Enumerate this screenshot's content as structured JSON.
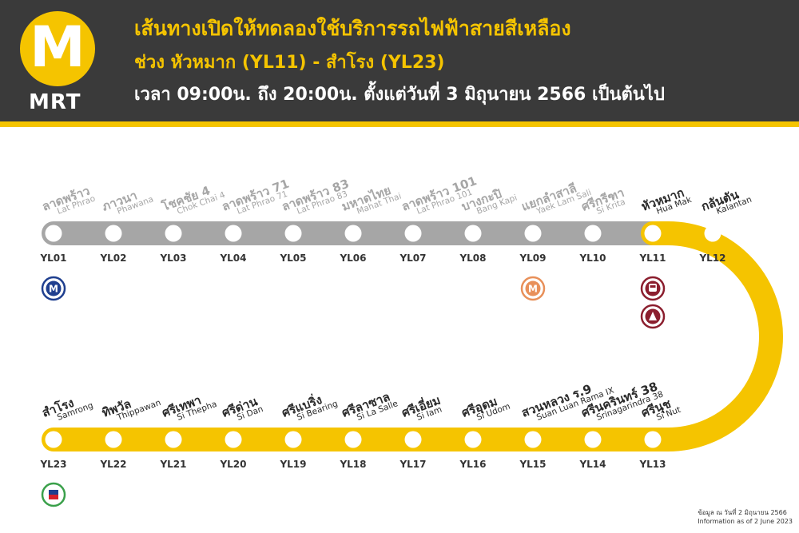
{
  "header": {
    "logo_letter": "M",
    "logo_text": "MRT",
    "title_line1": "เส้นทางเปิดให้ทดลองใช้บริการรถไฟฟ้าสายสีเหลือง",
    "title_line2": "ช่วง หัวหมาก (YL11) - สำโรง (YL23)",
    "title_line3": "เวลา 09:00น. ถึง 20:00น. ตั้งแต่วันที่ 3 มิถุนายน 2566 เป็นต้นไป"
  },
  "colors": {
    "header_bg": "#3a3a3a",
    "accent_yellow": "#f5c400",
    "inactive_gray": "#a6a6a6",
    "mrt_blue": "#1f3f8f",
    "mrt_orange": "#e8905a",
    "arl_maroon": "#8b1e2e",
    "srt_green": "#3aa04a"
  },
  "stations_top": [
    {
      "code": "YL01",
      "th": "ลาดพร้าว",
      "en": "Lat Phrao",
      "open": false,
      "interchange": [
        "mrt-blue"
      ]
    },
    {
      "code": "YL02",
      "th": "ภาวนา",
      "en": "Phawana",
      "open": false,
      "interchange": []
    },
    {
      "code": "YL03",
      "th": "โชคชัย 4",
      "en": "Chok Chai 4",
      "open": false,
      "interchange": []
    },
    {
      "code": "YL04",
      "th": "ลาดพร้าว 71",
      "en": "Lat Phrao 71",
      "open": false,
      "interchange": []
    },
    {
      "code": "YL05",
      "th": "ลาดพร้าว 83",
      "en": "Lat Phrao 83",
      "open": false,
      "interchange": []
    },
    {
      "code": "YL06",
      "th": "มหาดไทย",
      "en": "Mahat Thai",
      "open": false,
      "interchange": []
    },
    {
      "code": "YL07",
      "th": "ลาดพร้าว 101",
      "en": "Lat Phrao 101",
      "open": false,
      "interchange": []
    },
    {
      "code": "YL08",
      "th": "บางกะปิ",
      "en": "Bang Kapi",
      "open": false,
      "interchange": []
    },
    {
      "code": "YL09",
      "th": "แยกลำสาลี",
      "en": "Yaek Lam Sali",
      "open": false,
      "interchange": [
        "mrt-orange"
      ]
    },
    {
      "code": "YL10",
      "th": "ศรีกรีฑา",
      "en": "Si Krita",
      "open": false,
      "interchange": []
    },
    {
      "code": "YL11",
      "th": "หัวหมาก",
      "en": "Hua Mak",
      "open": true,
      "interchange": [
        "arl-train",
        "srt-red"
      ]
    },
    {
      "code": "YL12",
      "th": "กลันตัน",
      "en": "Kalantan",
      "open": true,
      "interchange": []
    }
  ],
  "stations_bottom": [
    {
      "code": "YL23",
      "th": "สำโรง",
      "en": "Samrong",
      "open": true,
      "interchange": [
        "bts-green"
      ]
    },
    {
      "code": "YL22",
      "th": "ทิพวัล",
      "en": "Thippawan",
      "open": true,
      "interchange": []
    },
    {
      "code": "YL21",
      "th": "ศรีเทพา",
      "en": "Si Thepha",
      "open": true,
      "interchange": []
    },
    {
      "code": "YL20",
      "th": "ศรีด่าน",
      "en": "Si Dan",
      "open": true,
      "interchange": []
    },
    {
      "code": "YL19",
      "th": "ศรีแบริ่ง",
      "en": "Si Bearing",
      "open": true,
      "interchange": []
    },
    {
      "code": "YL18",
      "th": "ศรีลาซาล",
      "en": "Si La Salle",
      "open": true,
      "interchange": []
    },
    {
      "code": "YL17",
      "th": "ศรีเอี่ยม",
      "en": "Si Iam",
      "open": true,
      "interchange": []
    },
    {
      "code": "YL16",
      "th": "ศรีอุดม",
      "en": "Si Udom",
      "open": true,
      "interchange": []
    },
    {
      "code": "YL15",
      "th": "สวนหลวง ร.9",
      "en": "Suan Luan Rama IX",
      "open": true,
      "interchange": []
    },
    {
      "code": "YL14",
      "th": "ศรีนครินทร์ 38",
      "en": "Srinagarindra 38",
      "open": true,
      "interchange": []
    },
    {
      "code": "YL13",
      "th": "ศรีนุช",
      "en": "Si Nut",
      "open": true,
      "interchange": []
    }
  ],
  "footnote": {
    "th": "ข้อมูล ณ วันที่ 2 มิถุนายน 2566",
    "en": "Information as of 2 June 2023"
  }
}
